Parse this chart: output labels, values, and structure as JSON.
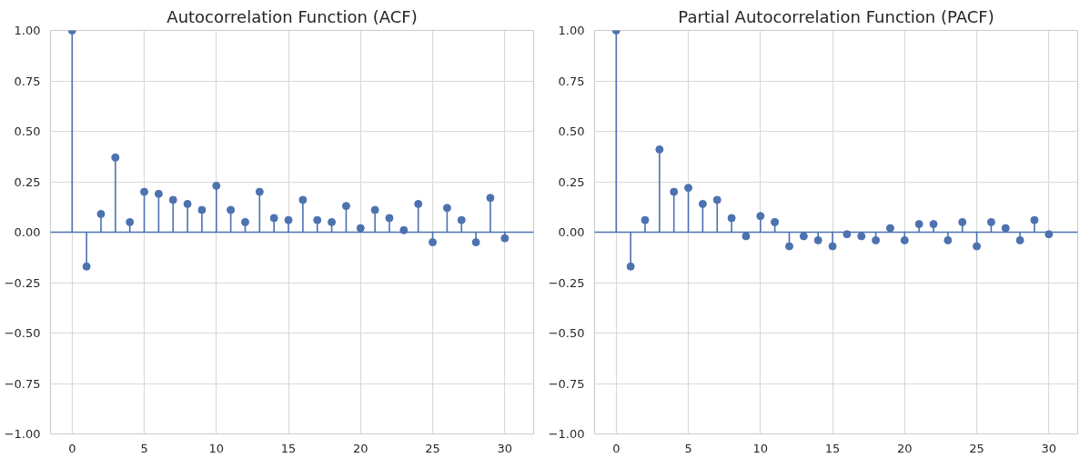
{
  "chart_data": [
    {
      "type": "lollipop",
      "title": "Autocorrelation Function (ACF)",
      "x": [
        0,
        1,
        2,
        3,
        4,
        5,
        6,
        7,
        8,
        9,
        10,
        11,
        12,
        13,
        14,
        15,
        16,
        17,
        18,
        19,
        20,
        21,
        22,
        23,
        24,
        25,
        26,
        27,
        28,
        29,
        30
      ],
      "series": [
        {
          "color": "#4c72b0",
          "values": [
            1.0,
            -0.17,
            0.09,
            0.37,
            0.05,
            0.2,
            0.19,
            0.16,
            0.14,
            0.11,
            0.23,
            0.11,
            0.05,
            0.2,
            0.07,
            0.06,
            0.16,
            0.06,
            0.05,
            0.13,
            0.02,
            0.11,
            0.07,
            0.01,
            0.14,
            -0.05,
            0.12,
            0.06,
            -0.05,
            0.17,
            -0.03
          ]
        }
      ],
      "xlim": [
        -1.5,
        32
      ],
      "ylim": [
        -1,
        1
      ],
      "xticks": [
        0,
        5,
        10,
        15,
        20,
        25,
        30
      ],
      "yticks": [
        {
          "value": -1,
          "label": "−1.00"
        },
        {
          "value": -0.75,
          "label": "−0.75"
        },
        {
          "value": -0.5,
          "label": "−0.50"
        },
        {
          "value": -0.25,
          "label": "−0.25"
        },
        {
          "value": 0,
          "label": "0.00"
        },
        {
          "value": 0.25,
          "label": "0.25"
        },
        {
          "value": 0.5,
          "label": "0.50"
        },
        {
          "value": 0.75,
          "label": "0.75"
        },
        {
          "value": 1,
          "label": "1.00"
        }
      ],
      "ref_lines": [
        {
          "axis": "y",
          "value": 0,
          "color": "#4c72b0"
        }
      ],
      "grid": true,
      "marker": "circle",
      "line_style": "solid"
    },
    {
      "type": "lollipop",
      "title": "Partial Autocorrelation Function (PACF)",
      "x": [
        0,
        1,
        2,
        3,
        4,
        5,
        6,
        7,
        8,
        9,
        10,
        11,
        12,
        13,
        14,
        15,
        16,
        17,
        18,
        19,
        20,
        21,
        22,
        23,
        24,
        25,
        26,
        27,
        28,
        29,
        30
      ],
      "series": [
        {
          "color": "#4c72b0",
          "values": [
            1.0,
            -0.17,
            0.06,
            0.41,
            0.2,
            0.22,
            0.14,
            0.16,
            0.07,
            -0.02,
            0.08,
            0.05,
            -0.07,
            -0.02,
            -0.04,
            -0.07,
            -0.01,
            -0.02,
            -0.04,
            0.02,
            -0.04,
            0.04,
            0.04,
            -0.04,
            0.05,
            -0.07,
            0.05,
            0.02,
            -0.04,
            0.06,
            -0.01
          ]
        }
      ],
      "xlim": [
        -1.5,
        32
      ],
      "ylim": [
        -1,
        1
      ],
      "xticks": [
        0,
        5,
        10,
        15,
        20,
        25,
        30
      ],
      "yticks": [
        {
          "value": -1,
          "label": "−1.00"
        },
        {
          "value": -0.75,
          "label": "−0.75"
        },
        {
          "value": -0.5,
          "label": "−0.50"
        },
        {
          "value": -0.25,
          "label": "−0.25"
        },
        {
          "value": 0,
          "label": "0.00"
        },
        {
          "value": 0.25,
          "label": "0.25"
        },
        {
          "value": 0.5,
          "label": "0.50"
        },
        {
          "value": 0.75,
          "label": "0.75"
        },
        {
          "value": 1,
          "label": "1.00"
        }
      ],
      "ref_lines": [
        {
          "axis": "y",
          "value": 0,
          "color": "#4c72b0"
        }
      ],
      "grid": true,
      "marker": "circle",
      "line_style": "solid"
    }
  ]
}
